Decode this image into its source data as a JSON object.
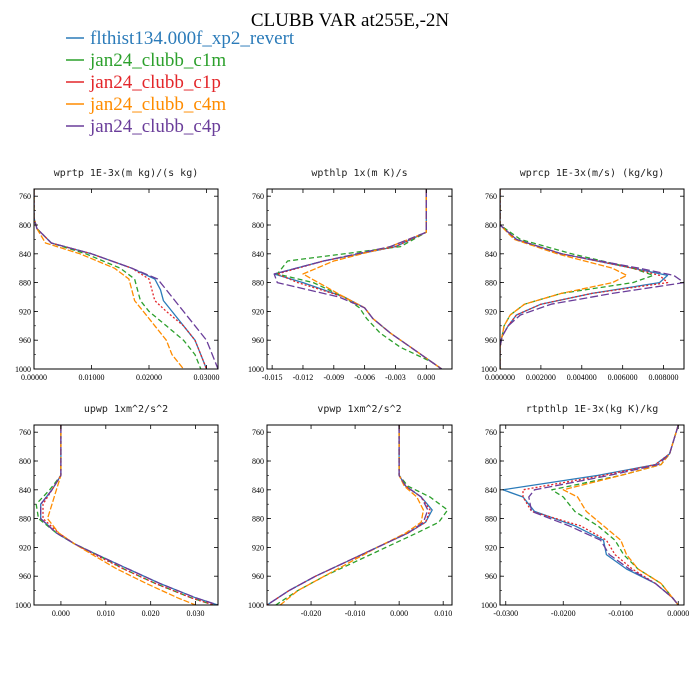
{
  "title": "CLUBB VAR at255E,-2N",
  "legend": [
    {
      "label": "flthist134.000f_xp2_revert",
      "color": "#2b7bb9",
      "dash": ""
    },
    {
      "label": "jan24_clubb_c1m",
      "color": "#2ca02c",
      "dash": "5,3"
    },
    {
      "label": "jan24_clubb_c1p",
      "color": "#e3262a",
      "dash": "2,2"
    },
    {
      "label": "jan24_clubb_c4m",
      "color": "#ff8c00",
      "dash": "6,2"
    },
    {
      "label": "jan24_clubb_c4p",
      "color": "#6a3d9a",
      "dash": "8,3"
    }
  ],
  "chart_data": [
    {
      "type": "line",
      "title": "wprtp  1E-3x(m kg)/(s kg)",
      "xlim": [
        0,
        0.032
      ],
      "ylim": [
        1000,
        750
      ],
      "xticks": [
        "0.00000",
        "0.01000",
        "0.02000",
        "0.03000"
      ],
      "xtick_values": [
        0,
        0.01,
        0.02,
        0.03
      ],
      "yticks": [
        "760",
        "800",
        "840",
        "880",
        "920",
        "960",
        "1000"
      ],
      "ytick_values": [
        760,
        800,
        840,
        880,
        920,
        960,
        1000
      ],
      "y": [
        750,
        790,
        805,
        825,
        840,
        860,
        875,
        890,
        905,
        920,
        940,
        960,
        980,
        1000
      ],
      "series": [
        {
          "values": [
            0,
            0,
            0.0005,
            0.003,
            0.01,
            0.017,
            0.021,
            0.022,
            0.0225,
            0.024,
            0.026,
            0.028,
            0.029,
            0.03
          ]
        },
        {
          "values": [
            0,
            0,
            0.0005,
            0.003,
            0.009,
            0.015,
            0.0175,
            0.018,
            0.0185,
            0.02,
            0.023,
            0.026,
            0.028,
            0.029
          ]
        },
        {
          "values": [
            0,
            0,
            0.0005,
            0.003,
            0.01,
            0.017,
            0.02,
            0.0205,
            0.021,
            0.023,
            0.026,
            0.028,
            0.029,
            0.03
          ]
        },
        {
          "values": [
            0,
            0,
            0.0005,
            0.002,
            0.008,
            0.014,
            0.0165,
            0.017,
            0.0175,
            0.019,
            0.021,
            0.023,
            0.024,
            0.026
          ]
        },
        {
          "values": [
            0,
            0,
            0.0005,
            0.003,
            0.01,
            0.017,
            0.0215,
            0.023,
            0.0245,
            0.026,
            0.028,
            0.03,
            0.031,
            0.032
          ]
        }
      ]
    },
    {
      "type": "line",
      "title": "wpthlp  1x(m K)/s",
      "xlim": [
        -0.0155,
        0.0025
      ],
      "ylim": [
        1000,
        750
      ],
      "xticks": [
        "-0.015",
        "-0.012",
        "-0.009",
        "-0.006",
        "-0.003",
        "0.000"
      ],
      "xtick_values": [
        -0.015,
        -0.012,
        -0.009,
        -0.006,
        -0.003,
        0
      ],
      "yticks": [
        "760",
        "800",
        "840",
        "880",
        "920",
        "960",
        "1000"
      ],
      "ytick_values": [
        760,
        800,
        840,
        880,
        920,
        960,
        1000
      ],
      "y": [
        750,
        800,
        810,
        830,
        850,
        868,
        880,
        900,
        915,
        930,
        950,
        970,
        990,
        1000
      ],
      "series": [
        {
          "values": [
            0,
            0,
            0,
            -0.003,
            -0.01,
            -0.0148,
            -0.012,
            -0.008,
            -0.006,
            -0.0052,
            -0.0035,
            -0.0015,
            0.0005,
            0.0015
          ]
        },
        {
          "values": [
            0,
            0,
            0,
            -0.0025,
            -0.0135,
            -0.0145,
            -0.011,
            -0.008,
            -0.0065,
            -0.0058,
            -0.0045,
            -0.0025,
            0.0005,
            0.0015
          ]
        },
        {
          "values": [
            0,
            0,
            0,
            -0.003,
            -0.01,
            -0.0145,
            -0.0125,
            -0.008,
            -0.006,
            -0.0052,
            -0.0035,
            -0.0015,
            0.0005,
            0.0015
          ]
        },
        {
          "values": [
            0,
            0,
            0,
            -0.0035,
            -0.009,
            -0.012,
            -0.0105,
            -0.008,
            -0.006,
            -0.0052,
            -0.0035,
            -0.0015,
            0.0005,
            0.0015
          ]
        },
        {
          "values": [
            0,
            0,
            0,
            -0.0035,
            -0.01,
            -0.0148,
            -0.0145,
            -0.0085,
            -0.006,
            -0.0052,
            -0.0035,
            -0.0015,
            0.0005,
            0.0015
          ]
        }
      ]
    },
    {
      "type": "line",
      "title": "wprcp  1E-3x(m/s) (kg/kg)",
      "xlim": [
        0,
        0.009
      ],
      "ylim": [
        1000,
        750
      ],
      "xticks": [
        "0.000000",
        "0.002000",
        "0.004000",
        "0.006000",
        "0.008000"
      ],
      "xtick_values": [
        0,
        0.002,
        0.004,
        0.006,
        0.008
      ],
      "yticks": [
        "760",
        "800",
        "840",
        "880",
        "920",
        "960",
        "1000"
      ],
      "ytick_values": [
        760,
        800,
        840,
        880,
        920,
        960,
        1000
      ],
      "y": [
        750,
        800,
        820,
        840,
        860,
        870,
        880,
        895,
        910,
        925,
        940,
        955,
        970,
        1000
      ],
      "series": [
        {
          "values": [
            0,
            0,
            0.0008,
            0.003,
            0.0065,
            0.0082,
            0.0078,
            0.0045,
            0.002,
            0.0008,
            0.0004,
            0.0001,
            0,
            0
          ]
        },
        {
          "values": [
            0,
            0,
            0.001,
            0.0035,
            0.0065,
            0.0075,
            0.0065,
            0.003,
            0.0012,
            0.0005,
            0.0002,
            0.0001,
            0,
            0
          ]
        },
        {
          "values": [
            0,
            0,
            0.0008,
            0.003,
            0.0065,
            0.0078,
            0.0082,
            0.0045,
            0.002,
            0.0008,
            0.0004,
            0.0001,
            0,
            0
          ]
        },
        {
          "values": [
            0,
            0,
            0.0007,
            0.0028,
            0.0055,
            0.0062,
            0.0055,
            0.003,
            0.0012,
            0.0005,
            0.0002,
            0.0001,
            0,
            0
          ]
        },
        {
          "values": [
            0,
            0,
            0.0008,
            0.003,
            0.0068,
            0.0085,
            0.009,
            0.0055,
            0.0025,
            0.001,
            0.0004,
            0.0001,
            0,
            0
          ]
        }
      ]
    },
    {
      "type": "line",
      "title": "upwp  1xm^2/s^2",
      "xlim": [
        -0.006,
        0.035
      ],
      "ylim": [
        1000,
        750
      ],
      "xticks": [
        "0.000",
        "0.010",
        "0.020",
        "0.030"
      ],
      "xtick_values": [
        0,
        0.01,
        0.02,
        0.03
      ],
      "yticks": [
        "760",
        "800",
        "840",
        "880",
        "920",
        "960",
        "1000"
      ],
      "ytick_values": [
        760,
        800,
        840,
        880,
        920,
        960,
        1000
      ],
      "y": [
        750,
        820,
        840,
        860,
        880,
        900,
        915,
        930,
        950,
        970,
        990,
        1000
      ],
      "series": [
        {
          "values": [
            0,
            0,
            -0.002,
            -0.0045,
            -0.0045,
            -0.001,
            0.003,
            0.008,
            0.015,
            0.022,
            0.03,
            0.035
          ]
        },
        {
          "values": [
            0,
            0,
            -0.0025,
            -0.0055,
            -0.005,
            -0.001,
            0.003,
            0.008,
            0.014,
            0.021,
            0.029,
            0.034
          ]
        },
        {
          "values": [
            0,
            0,
            -0.002,
            -0.004,
            -0.004,
            -0.0005,
            0.003,
            0.0075,
            0.014,
            0.021,
            0.029,
            0.034
          ]
        },
        {
          "values": [
            0,
            0,
            -0.001,
            -0.002,
            -0.003,
            -0.0005,
            0.003,
            0.007,
            0.0125,
            0.019,
            0.026,
            0.03
          ]
        },
        {
          "values": [
            0,
            0,
            -0.002,
            -0.0045,
            -0.0045,
            -0.001,
            0.003,
            0.008,
            0.015,
            0.022,
            0.03,
            0.035
          ]
        }
      ]
    },
    {
      "type": "line",
      "title": "vpwp  1xm^2/s^2",
      "xlim": [
        -0.03,
        0.012
      ],
      "ylim": [
        1000,
        750
      ],
      "xticks": [
        "-0.020",
        "-0.010",
        "0.000",
        "0.010"
      ],
      "xtick_values": [
        -0.02,
        -0.01,
        0,
        0.01
      ],
      "yticks": [
        "760",
        "800",
        "840",
        "880",
        "920",
        "960",
        "1000"
      ],
      "ytick_values": [
        760,
        800,
        840,
        880,
        920,
        960,
        1000
      ],
      "y": [
        750,
        820,
        835,
        850,
        868,
        885,
        900,
        920,
        940,
        960,
        980,
        1000
      ],
      "series": [
        {
          "values": [
            0,
            0,
            0.0015,
            0.005,
            0.0075,
            0.006,
            0.002,
            -0.005,
            -0.012,
            -0.019,
            -0.025,
            -0.03
          ]
        },
        {
          "values": [
            0,
            0,
            0.002,
            0.007,
            0.011,
            0.009,
            0.004,
            -0.003,
            -0.01,
            -0.017,
            -0.023,
            -0.028
          ]
        },
        {
          "values": [
            0,
            0,
            0.0015,
            0.005,
            0.007,
            0.006,
            0.002,
            -0.005,
            -0.012,
            -0.019,
            -0.025,
            -0.03
          ]
        },
        {
          "values": [
            0,
            0,
            0.0012,
            0.004,
            0.0055,
            0.005,
            0.0015,
            -0.005,
            -0.011,
            -0.017,
            -0.023,
            -0.027
          ]
        },
        {
          "values": [
            0,
            0,
            0.0015,
            0.005,
            0.0065,
            0.0055,
            0.002,
            -0.005,
            -0.012,
            -0.019,
            -0.025,
            -0.03
          ]
        }
      ]
    },
    {
      "type": "line",
      "title": "rtpthlp  1E-3x(kg K)/kg",
      "xlim": [
        -0.031,
        0.001
      ],
      "ylim": [
        1000,
        750
      ],
      "xticks": [
        "-0.0300",
        "-0.0200",
        "-0.0100",
        "0.0000"
      ],
      "xtick_values": [
        -0.03,
        -0.02,
        -0.01,
        0
      ],
      "yticks": [
        "760",
        "800",
        "840",
        "880",
        "920",
        "960",
        "1000"
      ],
      "ytick_values": [
        760,
        800,
        840,
        880,
        920,
        960,
        1000
      ],
      "y": [
        750,
        790,
        805,
        820,
        840,
        850,
        870,
        890,
        910,
        930,
        950,
        970,
        990,
        1000
      ],
      "series": [
        {
          "values": [
            0,
            -0.0015,
            -0.004,
            -0.014,
            -0.0305,
            -0.027,
            -0.025,
            -0.018,
            -0.013,
            -0.0125,
            -0.009,
            -0.004,
            -0.001,
            0
          ]
        },
        {
          "values": [
            0,
            -0.0015,
            -0.003,
            -0.01,
            -0.022,
            -0.02,
            -0.018,
            -0.014,
            -0.011,
            -0.0095,
            -0.007,
            -0.003,
            -0.001,
            0
          ]
        },
        {
          "values": [
            0,
            -0.0015,
            -0.004,
            -0.013,
            -0.027,
            -0.027,
            -0.0255,
            -0.017,
            -0.0125,
            -0.011,
            -0.008,
            -0.004,
            -0.001,
            0
          ]
        },
        {
          "values": [
            0,
            -0.0015,
            -0.003,
            -0.01,
            -0.02,
            -0.0175,
            -0.016,
            -0.013,
            -0.01,
            -0.009,
            -0.007,
            -0.003,
            -0.001,
            0
          ]
        },
        {
          "values": [
            0,
            -0.0015,
            -0.0035,
            -0.012,
            -0.025,
            -0.026,
            -0.0255,
            -0.019,
            -0.0135,
            -0.012,
            -0.0085,
            -0.004,
            -0.001,
            0
          ]
        }
      ]
    }
  ]
}
